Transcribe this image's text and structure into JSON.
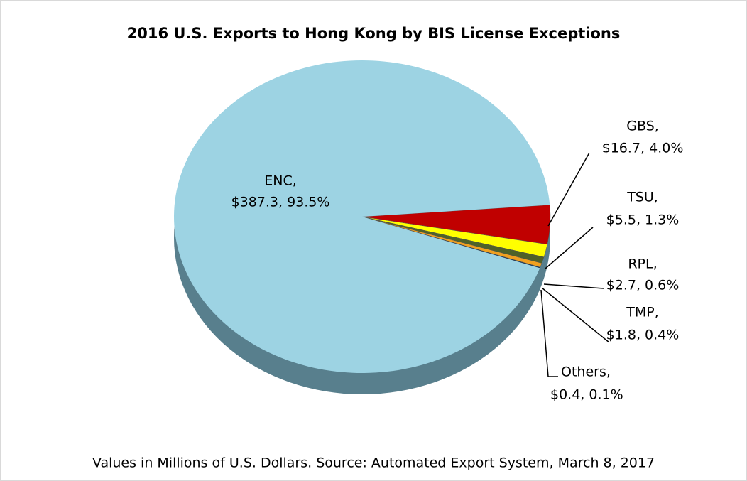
{
  "chart_data": {
    "type": "pie",
    "title": "2016 U.S. Exports to Hong Kong by BIS License Exceptions",
    "footnote": "Values in Millions of U.S. Dollars.  Source: Automated Export System, March 8, 2017",
    "values": [
      387.3,
      16.7,
      5.5,
      2.7,
      1.8,
      0.4
    ],
    "percents": [
      93.5,
      4.0,
      1.3,
      0.6,
      0.4,
      0.1
    ],
    "value_labels": [
      [
        "ENC,",
        "$387.3, 93.5%"
      ],
      [
        "GBS,",
        "$16.7, 4.0%"
      ],
      [
        "TSU,",
        "$5.5, 1.3%"
      ],
      [
        "RPL,",
        "$2.7, 0.6%"
      ],
      [
        "TMP,",
        "$1.8, 0.4%"
      ],
      [
        "Others,",
        "$0.4, 0.1%"
      ]
    ],
    "colors": [
      "#9dd3e3",
      "#c00000",
      "#ffff00",
      "#4f6228",
      "#f0a020",
      "#17375e"
    ]
  }
}
